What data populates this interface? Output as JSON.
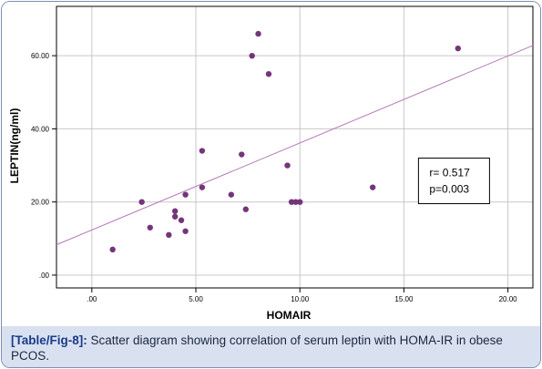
{
  "chart_data": {
    "type": "scatter",
    "title": "",
    "xlabel": "HOMAIR",
    "ylabel": "LEPTIN(ng/ml)",
    "xlim": [
      -1.7,
      21.2
    ],
    "ylim": [
      -3.5,
      73.5
    ],
    "x_ticks": [
      0,
      5,
      10,
      15,
      20
    ],
    "x_tick_labels": [
      ".00",
      "5.00",
      "10.00",
      "15.00",
      "20.00"
    ],
    "y_ticks": [
      0,
      20,
      40,
      60
    ],
    "y_tick_labels": [
      ".00",
      "20.00",
      "40.00",
      "60.00"
    ],
    "grid": true,
    "legend": "none",
    "series": [
      {
        "color": "#74357a",
        "points": [
          {
            "x": 1.0,
            "y": 7
          },
          {
            "x": 2.4,
            "y": 20
          },
          {
            "x": 2.8,
            "y": 13
          },
          {
            "x": 3.7,
            "y": 11
          },
          {
            "x": 4.0,
            "y": 17.5
          },
          {
            "x": 4.0,
            "y": 16
          },
          {
            "x": 4.3,
            "y": 15
          },
          {
            "x": 4.5,
            "y": 22
          },
          {
            "x": 4.5,
            "y": 12
          },
          {
            "x": 5.3,
            "y": 34
          },
          {
            "x": 5.3,
            "y": 24
          },
          {
            "x": 6.7,
            "y": 22
          },
          {
            "x": 7.2,
            "y": 33
          },
          {
            "x": 7.4,
            "y": 18
          },
          {
            "x": 7.7,
            "y": 60
          },
          {
            "x": 8.0,
            "y": 66
          },
          {
            "x": 8.5,
            "y": 55
          },
          {
            "x": 9.4,
            "y": 30
          },
          {
            "x": 9.6,
            "y": 20
          },
          {
            "x": 9.8,
            "y": 20
          },
          {
            "x": 10.0,
            "y": 20
          },
          {
            "x": 13.5,
            "y": 24
          },
          {
            "x": 17.6,
            "y": 62
          }
        ]
      }
    ],
    "fit_line": {
      "color": "#b27ab8",
      "from": {
        "x": -1.7,
        "y": 8.3
      },
      "to": {
        "x": 21.2,
        "y": 62.8
      }
    },
    "annotation": {
      "lines": [
        "r= 0.517",
        "p=0.003"
      ],
      "at": {
        "x": 15.7,
        "y": 32
      }
    }
  },
  "caption": {
    "label": "[Table/Fig-8]:",
    "text": " Scatter diagram showing correlation of serum leptin with HOMA-IR in obese PCOS."
  }
}
